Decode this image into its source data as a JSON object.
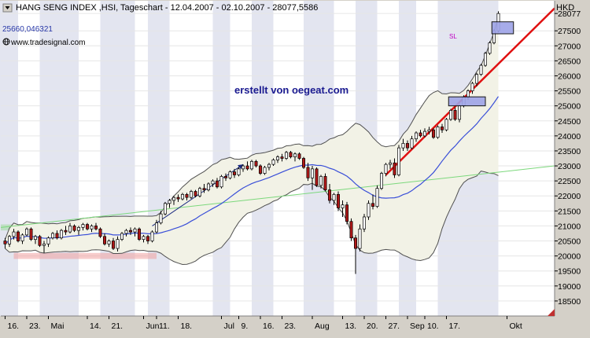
{
  "header": {
    "title": "HANG SENG INDEX ,HSI, Tageschart - 12.04.2007 - 02.10.2007 - 28077,5586",
    "cursor_value": "25660,046321",
    "source": "www.tradesignal.com",
    "currency": "HKD"
  },
  "annotations": {
    "watermark": "erstellt von oegeat.com",
    "stop_label": "SL"
  },
  "colors": {
    "background": "#ffffff",
    "stripe": "#e3e5f0",
    "band_fill": "#f2f2e6",
    "band_line": "#505050",
    "ma_line": "#3a4fd8",
    "trend_red": "#e01010",
    "trend_green": "#7cd87c",
    "arrow_navy": "#1a2a80",
    "up_candle": "#ffffff",
    "down_candle": "#b01818",
    "stop_box": "#9ea4e8",
    "watermark": "#1a1a90",
    "stop_label": "#c000c0"
  },
  "chart_data": {
    "type": "candlestick",
    "title": "HANG SENG INDEX ,HSI, Tageschart - 12.04.2007 - 02.10.2007 - 28077,5586",
    "ylabel": "HKD",
    "ylim": [
      18000,
      28500
    ],
    "y_ticks": [
      18500,
      19000,
      19500,
      20000,
      20500,
      21000,
      21500,
      22000,
      22500,
      23000,
      23500,
      24000,
      24500,
      25000,
      25500,
      26000,
      26500,
      27000,
      27500,
      28077
    ],
    "x_ticks": [
      {
        "day": 1,
        "label": "16."
      },
      {
        "day": 6,
        "label": "23."
      },
      {
        "day": 11,
        "label": "Mai"
      },
      {
        "day": 20,
        "label": "14."
      },
      {
        "day": 25,
        "label": "21."
      },
      {
        "day": 33,
        "label": "Jun"
      },
      {
        "day": 36,
        "label": "11."
      },
      {
        "day": 41,
        "label": "18."
      },
      {
        "day": 51,
        "label": "Jul"
      },
      {
        "day": 55,
        "label": "9."
      },
      {
        "day": 60,
        "label": "16."
      },
      {
        "day": 65,
        "label": "23."
      },
      {
        "day": 72,
        "label": "Aug"
      },
      {
        "day": 79,
        "label": "13."
      },
      {
        "day": 84,
        "label": "20."
      },
      {
        "day": 89,
        "label": "27."
      },
      {
        "day": 94,
        "label": "Sep"
      },
      {
        "day": 98,
        "label": "10."
      },
      {
        "day": 103,
        "label": "17."
      },
      {
        "day": 117,
        "label": "Okt"
      }
    ],
    "xlim": [
      0,
      128
    ],
    "candles": [
      {
        "o": 20500,
        "h": 20600,
        "l": 20250,
        "c": 20400
      },
      {
        "o": 20400,
        "h": 20700,
        "l": 20300,
        "c": 20650
      },
      {
        "o": 20650,
        "h": 20900,
        "l": 20550,
        "c": 20800
      },
      {
        "o": 20800,
        "h": 20850,
        "l": 20450,
        "c": 20500
      },
      {
        "o": 20500,
        "h": 20750,
        "l": 20400,
        "c": 20700
      },
      {
        "o": 20700,
        "h": 20950,
        "l": 20650,
        "c": 20900
      },
      {
        "o": 20900,
        "h": 20950,
        "l": 20500,
        "c": 20550
      },
      {
        "o": 20550,
        "h": 20700,
        "l": 20400,
        "c": 20650
      },
      {
        "o": 20650,
        "h": 20700,
        "l": 20300,
        "c": 20350
      },
      {
        "o": 20350,
        "h": 20500,
        "l": 20100,
        "c": 20400
      },
      {
        "o": 20400,
        "h": 20650,
        "l": 20300,
        "c": 20600
      },
      {
        "o": 20600,
        "h": 20800,
        "l": 20550,
        "c": 20750
      },
      {
        "o": 20750,
        "h": 20850,
        "l": 20550,
        "c": 20600
      },
      {
        "o": 20600,
        "h": 20900,
        "l": 20550,
        "c": 20850
      },
      {
        "o": 20850,
        "h": 21000,
        "l": 20700,
        "c": 20800
      },
      {
        "o": 20800,
        "h": 21100,
        "l": 20750,
        "c": 21000
      },
      {
        "o": 21000,
        "h": 21050,
        "l": 20800,
        "c": 20850
      },
      {
        "o": 20850,
        "h": 21000,
        "l": 20700,
        "c": 20950
      },
      {
        "o": 20950,
        "h": 21100,
        "l": 20850,
        "c": 21050
      },
      {
        "o": 21050,
        "h": 21100,
        "l": 20850,
        "c": 20900
      },
      {
        "o": 20900,
        "h": 21050,
        "l": 20800,
        "c": 21000
      },
      {
        "o": 21000,
        "h": 21100,
        "l": 20850,
        "c": 20900
      },
      {
        "o": 20900,
        "h": 20950,
        "l": 20600,
        "c": 20650
      },
      {
        "o": 20650,
        "h": 20750,
        "l": 20350,
        "c": 20400
      },
      {
        "o": 20400,
        "h": 20550,
        "l": 20300,
        "c": 20500
      },
      {
        "o": 20500,
        "h": 20600,
        "l": 20200,
        "c": 20250
      },
      {
        "o": 20250,
        "h": 20650,
        "l": 20150,
        "c": 20550
      },
      {
        "o": 20550,
        "h": 20800,
        "l": 20500,
        "c": 20750
      },
      {
        "o": 20750,
        "h": 20900,
        "l": 20650,
        "c": 20850
      },
      {
        "o": 20850,
        "h": 20950,
        "l": 20700,
        "c": 20800
      },
      {
        "o": 20800,
        "h": 20950,
        "l": 20650,
        "c": 20900
      },
      {
        "o": 20900,
        "h": 20950,
        "l": 20500,
        "c": 20550
      },
      {
        "o": 20550,
        "h": 20700,
        "l": 20450,
        "c": 20650
      },
      {
        "o": 20650,
        "h": 20700,
        "l": 20400,
        "c": 20500
      },
      {
        "o": 20500,
        "h": 20850,
        "l": 20450,
        "c": 20800
      },
      {
        "o": 20800,
        "h": 21200,
        "l": 20750,
        "c": 21100
      },
      {
        "o": 21100,
        "h": 21500,
        "l": 21050,
        "c": 21400
      },
      {
        "o": 21400,
        "h": 21800,
        "l": 21350,
        "c": 21750
      },
      {
        "o": 21750,
        "h": 21900,
        "l": 21600,
        "c": 21850
      },
      {
        "o": 21850,
        "h": 22000,
        "l": 21700,
        "c": 21950
      },
      {
        "o": 21950,
        "h": 22050,
        "l": 21800,
        "c": 21900
      },
      {
        "o": 21900,
        "h": 22100,
        "l": 21850,
        "c": 22050
      },
      {
        "o": 22050,
        "h": 22100,
        "l": 21850,
        "c": 21950
      },
      {
        "o": 21950,
        "h": 22200,
        "l": 21900,
        "c": 22150
      },
      {
        "o": 22150,
        "h": 22200,
        "l": 21950,
        "c": 22000
      },
      {
        "o": 22000,
        "h": 22300,
        "l": 21950,
        "c": 22250
      },
      {
        "o": 22250,
        "h": 22400,
        "l": 22100,
        "c": 22200
      },
      {
        "o": 22200,
        "h": 22450,
        "l": 22150,
        "c": 22400
      },
      {
        "o": 22400,
        "h": 22550,
        "l": 22300,
        "c": 22500
      },
      {
        "o": 22500,
        "h": 22600,
        "l": 22250,
        "c": 22300
      },
      {
        "o": 22300,
        "h": 22700,
        "l": 22250,
        "c": 22650
      },
      {
        "o": 22650,
        "h": 22750,
        "l": 22500,
        "c": 22600
      },
      {
        "o": 22600,
        "h": 22850,
        "l": 22550,
        "c": 22800
      },
      {
        "o": 22800,
        "h": 22900,
        "l": 22600,
        "c": 22700
      },
      {
        "o": 22700,
        "h": 22950,
        "l": 22650,
        "c": 22900
      },
      {
        "o": 22900,
        "h": 23050,
        "l": 22800,
        "c": 23000
      },
      {
        "o": 23000,
        "h": 23150,
        "l": 22850,
        "c": 22900
      },
      {
        "o": 22900,
        "h": 23200,
        "l": 22850,
        "c": 23150
      },
      {
        "o": 23150,
        "h": 23200,
        "l": 22950,
        "c": 23000
      },
      {
        "o": 23000,
        "h": 23050,
        "l": 22700,
        "c": 22750
      },
      {
        "o": 22750,
        "h": 23000,
        "l": 22700,
        "c": 22950
      },
      {
        "o": 22950,
        "h": 23100,
        "l": 22850,
        "c": 23050
      },
      {
        "o": 23050,
        "h": 23250,
        "l": 23000,
        "c": 23200
      },
      {
        "o": 23200,
        "h": 23350,
        "l": 23100,
        "c": 23300
      },
      {
        "o": 23300,
        "h": 23400,
        "l": 23150,
        "c": 23250
      },
      {
        "o": 23250,
        "h": 23500,
        "l": 23200,
        "c": 23450
      },
      {
        "o": 23450,
        "h": 23500,
        "l": 23250,
        "c": 23300
      },
      {
        "o": 23300,
        "h": 23450,
        "l": 23150,
        "c": 23400
      },
      {
        "o": 23400,
        "h": 23450,
        "l": 23200,
        "c": 23250
      },
      {
        "o": 23250,
        "h": 23300,
        "l": 22900,
        "c": 22950
      },
      {
        "o": 22950,
        "h": 23100,
        "l": 22500,
        "c": 22600
      },
      {
        "o": 22600,
        "h": 23000,
        "l": 22200,
        "c": 22900
      },
      {
        "o": 22900,
        "h": 22950,
        "l": 22300,
        "c": 22350
      },
      {
        "o": 22350,
        "h": 22700,
        "l": 22250,
        "c": 22650
      },
      {
        "o": 22650,
        "h": 22750,
        "l": 22150,
        "c": 22200
      },
      {
        "o": 22200,
        "h": 22400,
        "l": 21750,
        "c": 21850
      },
      {
        "o": 21850,
        "h": 22100,
        "l": 21700,
        "c": 22050
      },
      {
        "o": 22050,
        "h": 22150,
        "l": 21500,
        "c": 21600
      },
      {
        "o": 21600,
        "h": 21850,
        "l": 21300,
        "c": 21700
      },
      {
        "o": 21700,
        "h": 21800,
        "l": 21050,
        "c": 21150
      },
      {
        "o": 21150,
        "h": 21250,
        "l": 20500,
        "c": 20600
      },
      {
        "o": 20600,
        "h": 20700,
        "l": 19400,
        "c": 20250
      },
      {
        "o": 20250,
        "h": 21050,
        "l": 20150,
        "c": 20900
      },
      {
        "o": 20900,
        "h": 21400,
        "l": 20800,
        "c": 21300
      },
      {
        "o": 21300,
        "h": 21850,
        "l": 21200,
        "c": 21750
      },
      {
        "o": 21750,
        "h": 22050,
        "l": 21550,
        "c": 21650
      },
      {
        "o": 21650,
        "h": 22350,
        "l": 21600,
        "c": 22250
      },
      {
        "o": 22250,
        "h": 22800,
        "l": 22200,
        "c": 22750
      },
      {
        "o": 22750,
        "h": 23100,
        "l": 22650,
        "c": 23050
      },
      {
        "o": 23050,
        "h": 23200,
        "l": 22900,
        "c": 23100
      },
      {
        "o": 23100,
        "h": 23250,
        "l": 22600,
        "c": 22700
      },
      {
        "o": 22700,
        "h": 23700,
        "l": 22650,
        "c": 23600
      },
      {
        "o": 23600,
        "h": 23900,
        "l": 23500,
        "c": 23750
      },
      {
        "o": 23750,
        "h": 23850,
        "l": 23500,
        "c": 23600
      },
      {
        "o": 23600,
        "h": 24000,
        "l": 23550,
        "c": 23900
      },
      {
        "o": 23900,
        "h": 24150,
        "l": 23800,
        "c": 24100
      },
      {
        "o": 24100,
        "h": 24200,
        "l": 23950,
        "c": 24000
      },
      {
        "o": 24000,
        "h": 24250,
        "l": 23950,
        "c": 24150
      },
      {
        "o": 24150,
        "h": 24300,
        "l": 24050,
        "c": 24200
      },
      {
        "o": 24200,
        "h": 24250,
        "l": 23900,
        "c": 23950
      },
      {
        "o": 23950,
        "h": 24350,
        "l": 23900,
        "c": 24300
      },
      {
        "o": 24300,
        "h": 24400,
        "l": 24100,
        "c": 24200
      },
      {
        "o": 24200,
        "h": 24600,
        "l": 24150,
        "c": 24550
      },
      {
        "o": 24550,
        "h": 24900,
        "l": 24500,
        "c": 24850
      },
      {
        "o": 24850,
        "h": 24950,
        "l": 24500,
        "c": 24550
      },
      {
        "o": 24550,
        "h": 25050,
        "l": 24450,
        "c": 25000
      },
      {
        "o": 25000,
        "h": 25350,
        "l": 24950,
        "c": 25300
      },
      {
        "o": 25300,
        "h": 25550,
        "l": 25200,
        "c": 25500
      },
      {
        "o": 25500,
        "h": 25800,
        "l": 25400,
        "c": 25750
      },
      {
        "o": 25750,
        "h": 26100,
        "l": 25650,
        "c": 26050
      },
      {
        "o": 26050,
        "h": 26400,
        "l": 26000,
        "c": 26350
      },
      {
        "o": 26350,
        "h": 26800,
        "l": 26300,
        "c": 26750
      },
      {
        "o": 26750,
        "h": 27150,
        "l": 26700,
        "c": 27100
      },
      {
        "o": 27100,
        "h": 27550,
        "l": 27050,
        "c": 27500
      },
      {
        "o": 27500,
        "h": 28150,
        "l": 27450,
        "c": 28077
      }
    ]
  }
}
